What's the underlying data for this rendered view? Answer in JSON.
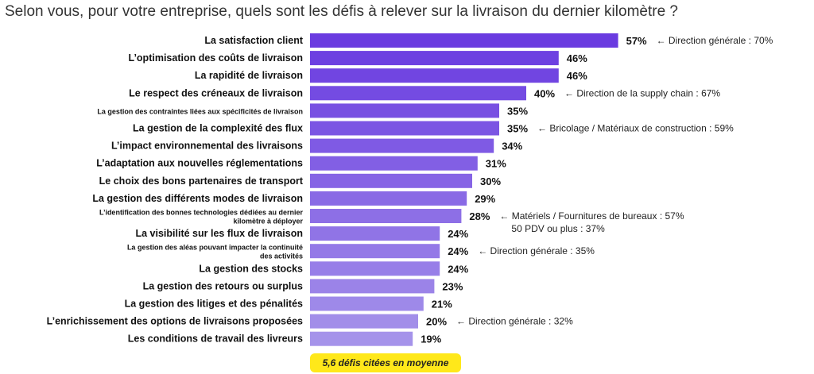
{
  "chart_data": {
    "type": "bar",
    "orientation": "horizontal",
    "title": "Selon vous, pour votre entreprise, quels sont les défis à relever sur la livraison du dernier kilomètre ?",
    "unit": "%",
    "categories": [
      "La satisfaction client",
      "L’optimisation des coûts de livraison",
      "La rapidité de livraison",
      "Le respect des créneaux de livraison",
      "La gestion des contraintes liées aux spécificités de livraison",
      "La gestion de la complexité des flux",
      "L’impact environnemental des livraisons",
      "L’adaptation aux nouvelles réglementations",
      "Le choix des bons partenaires de transport",
      "La gestion des différents modes de livraison",
      [
        "L’identification des bonnes technologies dédiées au dernier",
        "kilomètre à déployer"
      ],
      "La visibilité sur les flux de livraison",
      [
        "La gestion des aléas pouvant impacter la continuité",
        "des activités"
      ],
      "La gestion des stocks",
      "La gestion des retours ou surplus",
      "La gestion des litiges et des pénalités",
      "L’enrichissement des options de livraisons proposées",
      "Les conditions de travail des livreurs"
    ],
    "values": [
      57,
      46,
      46,
      40,
      35,
      35,
      34,
      31,
      30,
      29,
      28,
      24,
      24,
      24,
      23,
      21,
      20,
      19
    ],
    "value_labels": [
      "57%",
      "46%",
      "46%",
      "40%",
      "35%",
      "35%",
      "34%",
      "31%",
      "30%",
      "29%",
      "28%",
      "24%",
      "24%",
      "24%",
      "23%",
      "21%",
      "20%",
      "19%"
    ],
    "annotations": [
      {
        "row": 0,
        "lines": [
          "← Direction générale : 70%"
        ]
      },
      {
        "row": 3,
        "lines": [
          "← Direction de la supply chain : 67%"
        ]
      },
      {
        "row": 5,
        "lines": [
          "← Bricolage / Matériaux de construction : 59%"
        ]
      },
      {
        "row": 10,
        "lines": [
          "← Matériels / Fournitures de bureaux : 57%",
          "50 PDV ou plus : 37%"
        ]
      },
      {
        "row": 12,
        "lines": [
          "← Direction générale : 35%"
        ]
      },
      {
        "row": 16,
        "lines": [
          "← Direction générale : 32%"
        ]
      }
    ],
    "colors": {
      "top": "#6a3be0",
      "bottom": "#a593ea"
    },
    "footnote": "5,6 défis citées en moyenne"
  }
}
